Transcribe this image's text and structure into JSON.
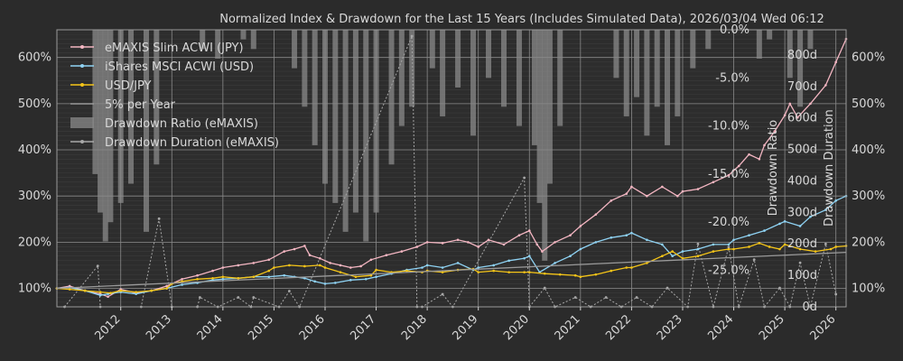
{
  "chart_data": {
    "type": "line",
    "title": "Normalized Index & Drawdown for the Last 15 Years (Includes Simulated Data), 2026/03/04 Wed 06:12",
    "x_ticks": [
      "2012",
      "2013",
      "2014",
      "2015",
      "2016",
      "2017",
      "2018",
      "2019",
      "2020",
      "2021",
      "2022",
      "2023",
      "2024",
      "2025",
      "2026"
    ],
    "xlim": [
      2010.75,
      2026.2
    ],
    "left_axis": {
      "ticks": [
        "100%",
        "200%",
        "300%",
        "400%",
        "500%",
        "600%"
      ],
      "tick_values": [
        100,
        200,
        300,
        400,
        500,
        600
      ],
      "ylim": [
        60,
        660
      ]
    },
    "right_axis_percent": {
      "ticks": [
        "100%",
        "200%",
        "300%",
        "400%",
        "500%",
        "600%"
      ]
    },
    "drawdown_ratio_axis": {
      "label": "Drawdown Ratio",
      "ticks": [
        "0.0%",
        "-5.0%",
        "-10.0%",
        "-15.0%",
        "-20.0%",
        "-25.0%"
      ],
      "tick_values": [
        0,
        -5,
        -10,
        -15,
        -20,
        -25
      ],
      "ylim": [
        -28.8,
        0
      ]
    },
    "drawdown_duration_axis": {
      "label": "Drawdown Duration",
      "ticks": [
        "0d",
        "100d",
        "200d",
        "300d",
        "400d",
        "500d",
        "600d",
        "700d",
        "800d"
      ],
      "tick_values": [
        0,
        100,
        200,
        300,
        400,
        500,
        600,
        700,
        800
      ],
      "ylim": [
        0,
        880
      ]
    },
    "grid": true,
    "legend_position": "top-left",
    "legend": [
      {
        "label": "eMAXIS Slim ACWI (JPY)",
        "color": "#f4b6c2",
        "kind": "line-dot"
      },
      {
        "label": "iShares MSCI ACWI (USD)",
        "color": "#8fd3f4",
        "kind": "line-dot"
      },
      {
        "label": "USD/JPY",
        "color": "#f5c518",
        "kind": "line-dot"
      },
      {
        "label": "5% per Year",
        "color": "#9a9a9a",
        "kind": "line"
      },
      {
        "label": "Drawdown Ratio (eMAXIS)",
        "color": "#8a8a8a",
        "kind": "patch"
      },
      {
        "label": "Drawdown Duration (eMAXIS)",
        "color": "#a8a8a8",
        "kind": "line-dot"
      }
    ],
    "series": [
      {
        "name": "eMAXIS Slim ACWI (JPY)",
        "color": "#f4b6c2",
        "x": [
          2010.75,
          2011.0,
          2011.3,
          2011.6,
          2011.75,
          2012.0,
          2012.3,
          2012.6,
          2012.9,
          2013.2,
          2013.5,
          2013.8,
          2014.0,
          2014.3,
          2014.6,
          2014.9,
          2015.2,
          2015.4,
          2015.6,
          2015.7,
          2015.9,
          2016.1,
          2016.3,
          2016.5,
          2016.7,
          2016.9,
          2017.2,
          2017.5,
          2017.8,
          2018.0,
          2018.3,
          2018.6,
          2018.8,
          2019.0,
          2019.2,
          2019.5,
          2019.8,
          2020.0,
          2020.15,
          2020.25,
          2020.5,
          2020.8,
          2021.0,
          2021.3,
          2021.6,
          2021.9,
          2022.0,
          2022.3,
          2022.6,
          2022.9,
          2023.0,
          2023.3,
          2023.6,
          2023.9,
          2024.1,
          2024.3,
          2024.5,
          2024.6,
          2024.8,
          2025.0,
          2025.1,
          2025.25,
          2025.5,
          2025.8,
          2026.0,
          2026.2
        ],
        "y": [
          100,
          105,
          95,
          88,
          82,
          98,
          90,
          95,
          105,
          120,
          128,
          138,
          145,
          150,
          155,
          162,
          180,
          185,
          192,
          172,
          165,
          155,
          150,
          145,
          148,
          162,
          172,
          180,
          190,
          200,
          198,
          205,
          200,
          190,
          205,
          195,
          215,
          225,
          195,
          180,
          200,
          215,
          235,
          260,
          290,
          305,
          320,
          300,
          320,
          300,
          310,
          315,
          330,
          345,
          365,
          390,
          380,
          410,
          440,
          475,
          500,
          470,
          500,
          540,
          590,
          640
        ]
      },
      {
        "name": "iShares MSCI ACWI (USD)",
        "color": "#8fd3f4",
        "x": [
          2010.75,
          2011.0,
          2011.3,
          2011.6,
          2011.75,
          2012.0,
          2012.3,
          2012.6,
          2012.9,
          2013.2,
          2013.5,
          2013.8,
          2014.0,
          2014.3,
          2014.6,
          2014.9,
          2015.2,
          2015.4,
          2015.6,
          2015.8,
          2016.0,
          2016.2,
          2016.5,
          2016.8,
          2017.0,
          2017.3,
          2017.6,
          2017.9,
          2018.0,
          2018.3,
          2018.6,
          2018.9,
          2019.0,
          2019.3,
          2019.6,
          2019.9,
          2020.0,
          2020.2,
          2020.5,
          2020.8,
          2021.0,
          2021.3,
          2021.6,
          2021.9,
          2022.0,
          2022.3,
          2022.6,
          2022.8,
          2023.0,
          2023.3,
          2023.6,
          2023.9,
          2024.0,
          2024.3,
          2024.6,
          2024.9,
          2025.0,
          2025.3,
          2025.5,
          2025.8,
          2026.0,
          2026.2
        ],
        "y": [
          100,
          102,
          95,
          85,
          88,
          92,
          88,
          95,
          100,
          108,
          112,
          118,
          120,
          122,
          125,
          125,
          128,
          125,
          122,
          115,
          110,
          112,
          118,
          120,
          125,
          132,
          140,
          145,
          150,
          145,
          155,
          140,
          145,
          150,
          160,
          165,
          170,
          135,
          155,
          170,
          185,
          200,
          210,
          215,
          220,
          205,
          195,
          170,
          180,
          185,
          195,
          195,
          205,
          215,
          225,
          240,
          245,
          235,
          255,
          270,
          290,
          300
        ]
      },
      {
        "name": "USD/JPY",
        "color": "#f5c518",
        "x": [
          2010.75,
          2011.0,
          2011.3,
          2011.6,
          2011.8,
          2012.0,
          2012.3,
          2012.6,
          2012.9,
          2013.0,
          2013.2,
          2013.5,
          2013.8,
          2014.0,
          2014.3,
          2014.6,
          2014.9,
          2015.0,
          2015.3,
          2015.6,
          2015.9,
          2016.0,
          2016.3,
          2016.6,
          2016.9,
          2017.0,
          2017.3,
          2017.6,
          2017.9,
          2018.0,
          2018.3,
          2018.6,
          2018.9,
          2019.0,
          2019.3,
          2019.6,
          2019.9,
          2020.0,
          2020.3,
          2020.6,
          2020.9,
          2021.0,
          2021.3,
          2021.6,
          2021.9,
          2022.0,
          2022.3,
          2022.6,
          2022.8,
          2023.0,
          2023.3,
          2023.6,
          2023.9,
          2024.0,
          2024.3,
          2024.5,
          2024.7,
          2024.9,
          2025.0,
          2025.3,
          2025.6,
          2025.9,
          2026.0,
          2026.2
        ],
        "y": [
          100,
          98,
          95,
          92,
          90,
          95,
          92,
          95,
          100,
          110,
          115,
          120,
          122,
          125,
          122,
          125,
          138,
          145,
          150,
          148,
          150,
          145,
          135,
          125,
          128,
          140,
          135,
          138,
          135,
          138,
          135,
          140,
          142,
          135,
          138,
          135,
          135,
          135,
          132,
          130,
          128,
          125,
          130,
          138,
          145,
          145,
          155,
          170,
          180,
          165,
          170,
          180,
          185,
          185,
          190,
          198,
          190,
          185,
          195,
          185,
          180,
          185,
          190,
          192
        ]
      },
      {
        "name": "5% per Year",
        "color": "#9a9a9a",
        "x": [
          2010.75,
          2026.2
        ],
        "y": [
          100,
          178
        ]
      }
    ],
    "drawdown_ratio": {
      "x": [
        2011.5,
        2011.6,
        2011.7,
        2011.8,
        2012.0,
        2012.2,
        2012.5,
        2012.7,
        2013.6,
        2013.9,
        2014.4,
        2014.6,
        2015.4,
        2015.6,
        2015.8,
        2016.0,
        2016.2,
        2016.4,
        2016.6,
        2016.8,
        2017.0,
        2017.3,
        2017.5,
        2017.7,
        2018.1,
        2018.3,
        2018.6,
        2018.9,
        2019.2,
        2019.5,
        2019.8,
        2020.1,
        2020.2,
        2020.3,
        2020.4,
        2020.6,
        2021.7,
        2021.9,
        2022.1,
        2022.3,
        2022.5,
        2022.7,
        2022.9,
        2023.2,
        2023.5,
        2024.5,
        2024.7,
        2025.1,
        2025.3,
        2025.5
      ],
      "values": [
        -15,
        -19,
        -22,
        -20,
        -18,
        -16,
        -21,
        -14,
        -2,
        -3,
        -1,
        -2,
        -4,
        -8,
        -12,
        -16,
        -18,
        -21,
        -19,
        -22,
        -19,
        -14,
        -10,
        -8,
        -4,
        -9,
        -6,
        -11,
        -5,
        -8,
        -10,
        -12,
        -18,
        -24,
        -16,
        -10,
        -5,
        -9,
        -7,
        -11,
        -8,
        -12,
        -9,
        -4,
        -2,
        -3,
        -1,
        -5,
        -8,
        -2
      ]
    },
    "drawdown_duration": {
      "x": [
        2010.9,
        2011.55,
        2011.6,
        2012.4,
        2012.75,
        2013.0,
        2013.5,
        2013.55,
        2013.9,
        2014.3,
        2014.55,
        2014.6,
        2015.1,
        2015.3,
        2015.5,
        2017.7,
        2017.8,
        2017.9,
        2018.3,
        2018.5,
        2019.9,
        2020.0,
        2020.3,
        2020.5,
        2020.9,
        2021.2,
        2021.5,
        2021.8,
        2022.1,
        2022.4,
        2022.7,
        2023.1,
        2023.3,
        2023.6,
        2023.9,
        2024.1,
        2024.4,
        2024.6,
        2024.9,
        2025.1,
        2025.3,
        2025.5,
        2025.8,
        2026.0
      ],
      "values": [
        0,
        130,
        0,
        0,
        280,
        0,
        0,
        30,
        0,
        30,
        0,
        30,
        0,
        50,
        0,
        860,
        0,
        0,
        40,
        0,
        410,
        0,
        60,
        0,
        30,
        0,
        30,
        0,
        30,
        0,
        60,
        0,
        200,
        0,
        190,
        0,
        150,
        0,
        60,
        0,
        140,
        0,
        200,
        40
      ]
    }
  }
}
